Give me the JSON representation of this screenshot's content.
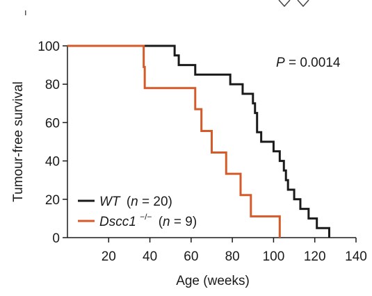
{
  "chart_data": {
    "type": "line",
    "title": "",
    "xlabel": "Age (weeks)",
    "ylabel": "Tumour-free survival",
    "xlim": [
      0,
      140
    ],
    "ylim": [
      0,
      100
    ],
    "xticks": [
      20,
      40,
      60,
      80,
      100,
      120,
      140
    ],
    "yticks": [
      0,
      20,
      40,
      60,
      80,
      100
    ],
    "grid": false,
    "legend_position": "bottom-left",
    "annotation": "P = 0.0014",
    "series": [
      {
        "name": "WT",
        "legend_n": "(n = 20)",
        "color": "#1a1a1a",
        "x": [
          0,
          52,
          54,
          62,
          79,
          85,
          90,
          91,
          92,
          94,
          100,
          103,
          105,
          106,
          107,
          108,
          110,
          113,
          117,
          121,
          127,
          127
        ],
        "y": [
          100,
          95,
          90,
          85,
          80,
          75,
          70,
          65,
          55,
          50,
          45,
          40,
          35,
          30,
          25,
          25,
          20,
          15,
          10,
          5,
          0,
          0
        ]
      },
      {
        "name": "Dscc1",
        "name_superscript": "−/−",
        "legend_n": "(n = 9)",
        "color": "#d55a2a",
        "x": [
          0,
          37,
          37.5,
          62,
          65,
          67,
          70,
          77,
          84,
          86,
          89,
          103,
          103
        ],
        "y": [
          100,
          89,
          78,
          67,
          55.6,
          55.6,
          44.4,
          33.3,
          22.2,
          22.2,
          11.1,
          0,
          0
        ]
      }
    ]
  }
}
